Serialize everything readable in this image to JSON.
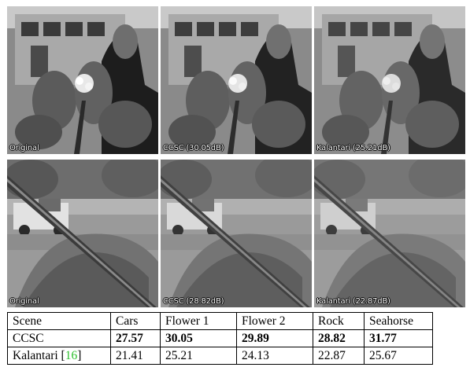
{
  "figure": {
    "rows": [
      {
        "scene": "flower",
        "panels": [
          {
            "caption": "Original"
          },
          {
            "caption": "CCSC (30.05dB)"
          },
          {
            "caption": "Kalantari (25.21dB)"
          }
        ]
      },
      {
        "scene": "rock",
        "panels": [
          {
            "caption": "Original"
          },
          {
            "caption": "CCSC (28.82dB)"
          },
          {
            "caption": "Kalantari (22.87dB)"
          }
        ]
      }
    ]
  },
  "table": {
    "header": [
      "Scene",
      "Cars",
      "Flower 1",
      "Flower 2",
      "Rock",
      "Seahorse"
    ],
    "rows": [
      {
        "method": "CCSC",
        "values": [
          "27.57",
          "30.05",
          "29.89",
          "28.82",
          "31.77"
        ],
        "bold": true
      },
      {
        "method": "Kalantari [",
        "ref": "16",
        "method_suffix": "]",
        "values": [
          "21.41",
          "25.21",
          "24.13",
          "22.87",
          "25.67"
        ],
        "bold": false
      }
    ]
  }
}
